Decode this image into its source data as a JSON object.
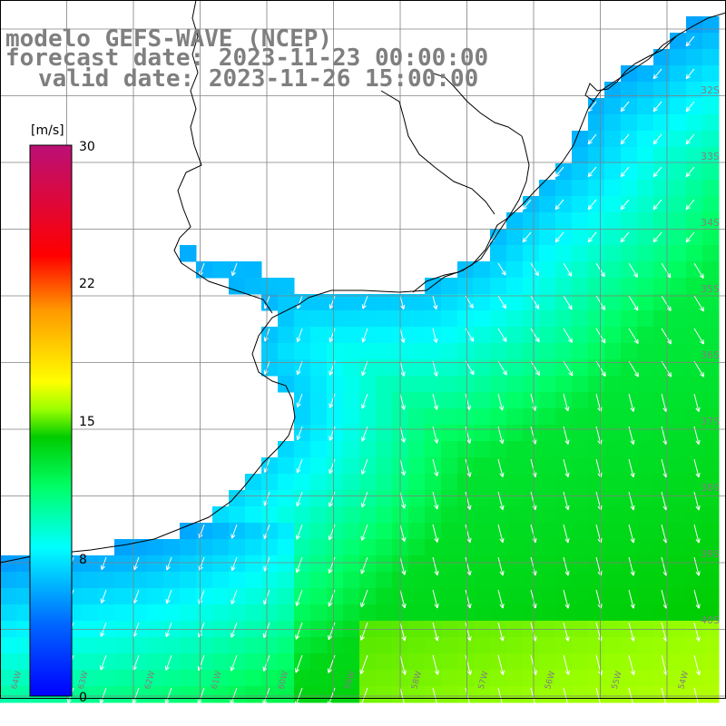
{
  "title": {
    "line1": "modelo GEFS-WAVE (NCEP)",
    "line2": "forecast date: 2023-11-23 00:00:00",
    "line3": "valid date: 2023-11-26 15:00:00"
  },
  "colorbar": {
    "unit": "[m/s]",
    "ticks": [
      "0",
      "8",
      "15",
      "22",
      "30"
    ],
    "min": 0,
    "max": 30
  },
  "map": {
    "lat_labels": [
      "32S",
      "33S",
      "34S",
      "35S",
      "36S",
      "37S",
      "38S",
      "39S",
      "40S"
    ],
    "lon_labels": [
      "64W",
      "63W",
      "62W",
      "61W",
      "60W",
      "59W",
      "58W",
      "57W",
      "56W",
      "55W",
      "54W"
    ],
    "land_color": "#ffffff",
    "coastline_color": "#000000",
    "grid_color": "#808080",
    "arrow_color": "#ffffff",
    "field": "wind speed and direction"
  }
}
